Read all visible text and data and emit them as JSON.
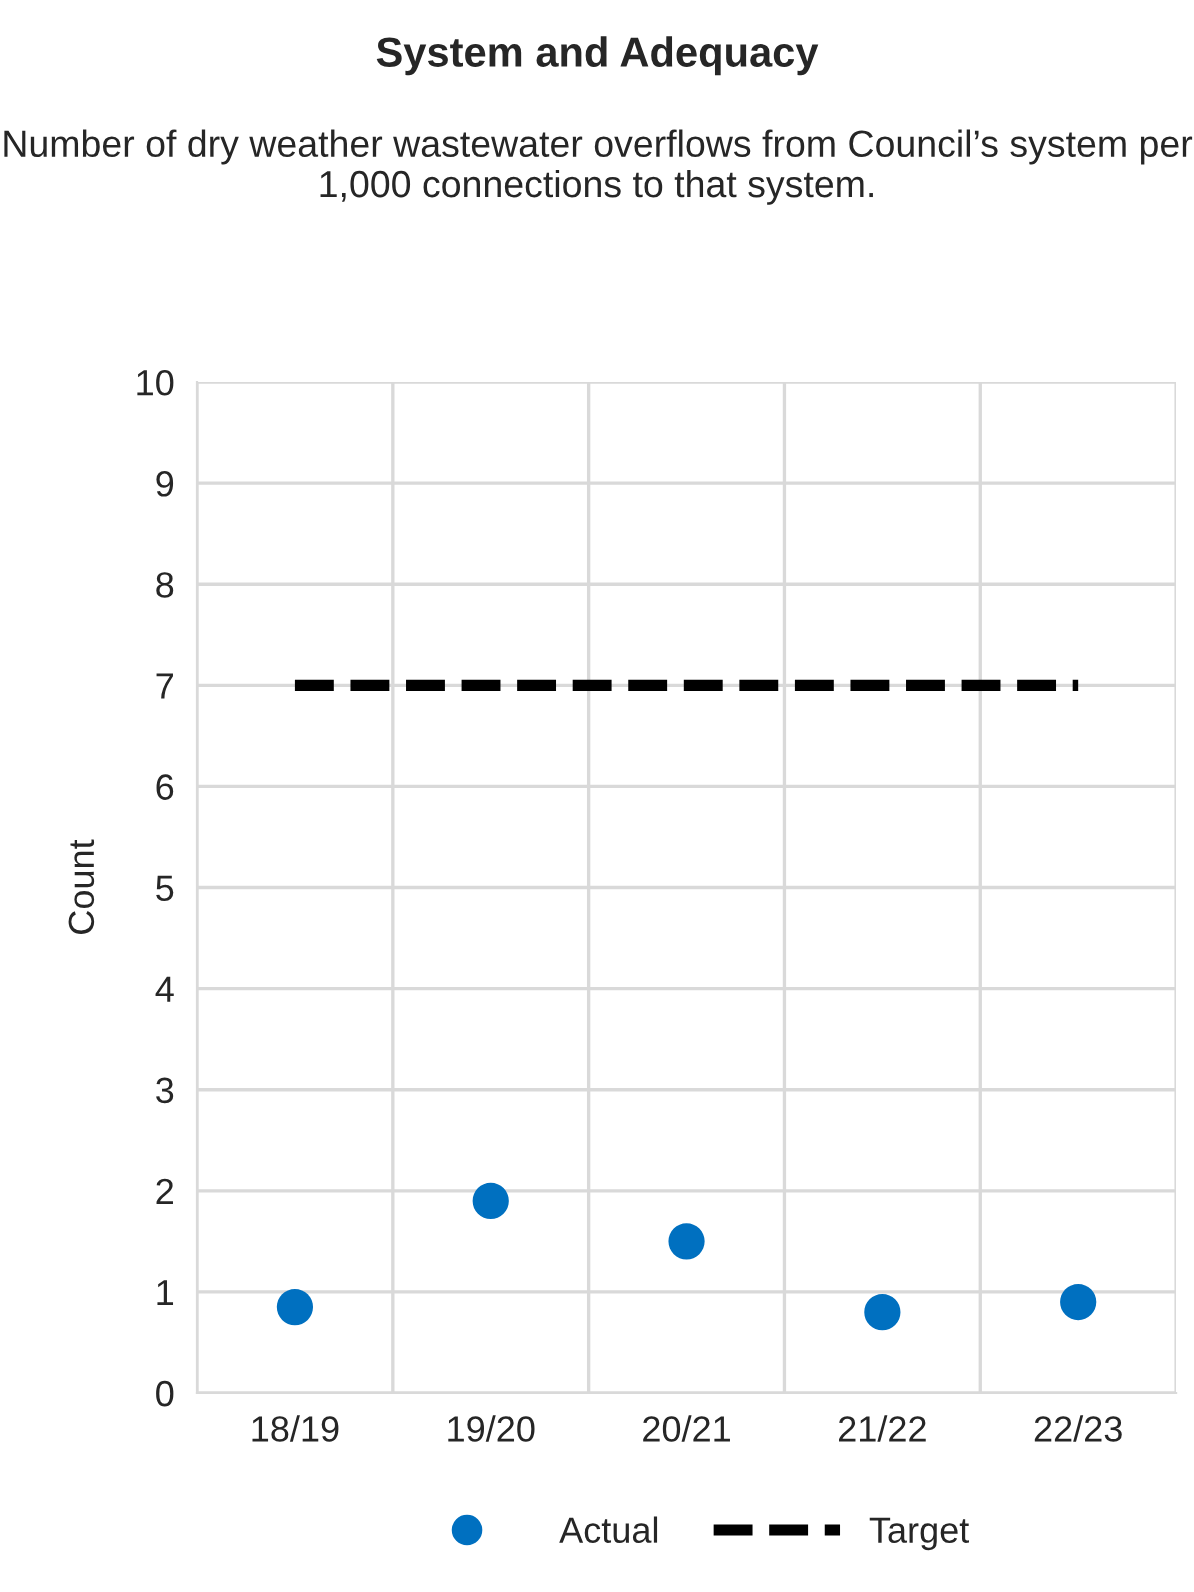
{
  "chart_data": {
    "type": "scatter",
    "title": "System and Adequacy",
    "subtitle": "Number of dry weather wastewater overflows from Council’s system per 1,000 connections to that system.",
    "ylabel": "Count",
    "categories": [
      "18/19",
      "19/20",
      "20/21",
      "21/22",
      "22/23"
    ],
    "series": [
      {
        "name": "Actual",
        "color": "#0070c0",
        "marker": "circle",
        "values": [
          0.85,
          1.9,
          1.5,
          0.8,
          0.9
        ]
      },
      {
        "name": "Target",
        "type": "line",
        "color": "#000000",
        "line_style": "dashed",
        "marker": "none",
        "values": [
          7,
          7,
          7,
          7,
          7
        ]
      }
    ],
    "ylim": [
      0,
      10
    ],
    "yticks": [
      0,
      1,
      2,
      3,
      4,
      5,
      6,
      7,
      8,
      9,
      10
    ],
    "grid": true,
    "legend": "bottom"
  }
}
